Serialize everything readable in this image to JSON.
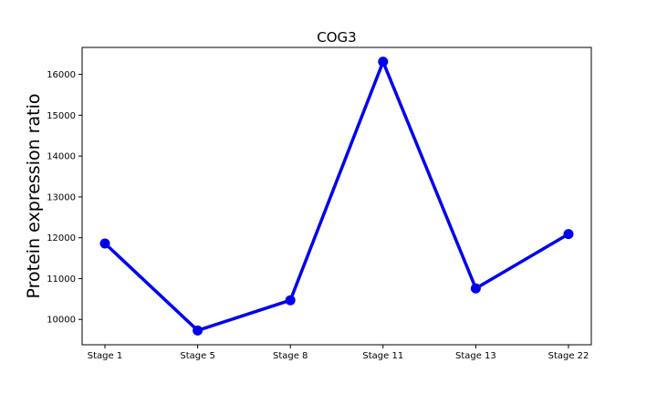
{
  "chart_data": {
    "type": "line",
    "title": "COG3",
    "xlabel": "",
    "ylabel": "Protein expression ratio",
    "categories": [
      "Stage 1",
      "Stage 5",
      "Stage 8",
      "Stage 11",
      "Stage 13",
      "Stage 22"
    ],
    "series": [
      {
        "values": [
          11860,
          9730,
          10470,
          16310,
          10760,
          12090
        ],
        "color": "#0000ee"
      }
    ],
    "yticks": [
      10000,
      11000,
      12000,
      13000,
      14000,
      15000,
      16000
    ],
    "ylim": [
      9380,
      16660
    ],
    "grid": false,
    "legend": "none"
  }
}
